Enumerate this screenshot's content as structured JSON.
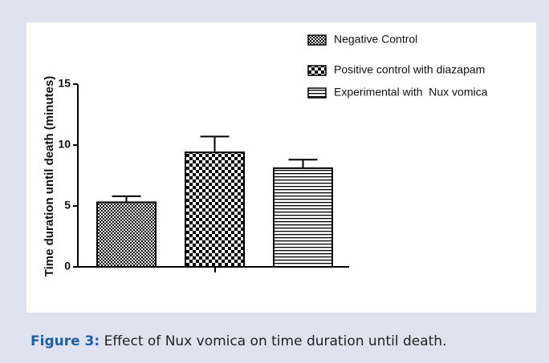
{
  "chart_data": {
    "type": "bar",
    "ylabel": "Time duration until death (minutes)",
    "categories": [
      "Negative Control",
      "Positive control with diazapam",
      "Experimental with  Nux vomica"
    ],
    "values": [
      5.3,
      9.4,
      8.1
    ],
    "errors": [
      0.5,
      1.3,
      0.7
    ],
    "patterns": [
      "fine-check",
      "check",
      "hlines"
    ],
    "ylim": [
      0,
      15
    ],
    "yticks": [
      0,
      5,
      10,
      15
    ]
  },
  "caption": {
    "label": "Figure 3:",
    "text": " Effect of Nux vomica on time duration until death."
  }
}
